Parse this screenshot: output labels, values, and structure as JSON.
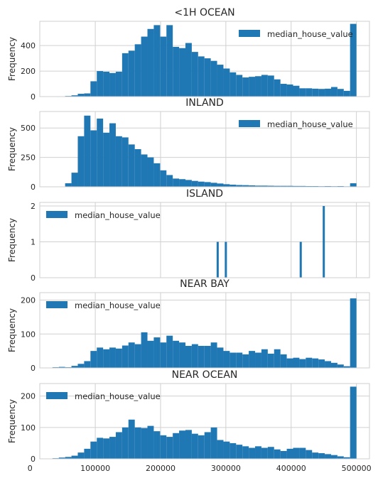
{
  "chart_data": {
    "type": "bar",
    "series_label": "median_house_value",
    "bar_color": "#1f77b4",
    "grid": true,
    "x_range": [
      15000,
      520000
    ],
    "x_ticks": [
      0,
      100000,
      200000,
      300000,
      400000,
      500000
    ],
    "x_tick_labels": [
      "0",
      "100000",
      "200000",
      "300000",
      "400000",
      "500000"
    ],
    "bins": {
      "start": 15000,
      "width": 9700,
      "count": 50
    },
    "panels": [
      {
        "title": "<1H OCEAN",
        "ylabel": "Frequency",
        "ylim": [
          0,
          590
        ],
        "yticks": [
          0,
          200,
          400
        ],
        "legend_position": "upper right",
        "values": [
          0,
          0,
          0,
          2,
          5,
          10,
          22,
          25,
          120,
          200,
          195,
          185,
          195,
          340,
          360,
          410,
          470,
          530,
          560,
          470,
          560,
          390,
          380,
          420,
          350,
          315,
          300,
          280,
          250,
          220,
          190,
          170,
          150,
          155,
          160,
          170,
          165,
          135,
          100,
          95,
          85,
          65,
          65,
          62,
          60,
          62,
          75,
          60,
          45,
          570
        ]
      },
      {
        "title": "INLAND",
        "ylabel": "Frequency",
        "ylim": [
          0,
          640
        ],
        "yticks": [
          0,
          250,
          500
        ],
        "legend_position": "upper right",
        "values": [
          0,
          0,
          0,
          0,
          30,
          120,
          430,
          605,
          480,
          580,
          460,
          540,
          430,
          420,
          360,
          320,
          275,
          250,
          200,
          140,
          100,
          70,
          65,
          58,
          50,
          44,
          40,
          34,
          28,
          22,
          18,
          15,
          14,
          12,
          10,
          10,
          9,
          8,
          8,
          8,
          7,
          7,
          6,
          6,
          5,
          6,
          5,
          6,
          4,
          30
        ]
      },
      {
        "title": "ISLAND",
        "ylabel": "Frequency",
        "ylim": [
          0,
          2.1
        ],
        "yticks": [
          0,
          1,
          2
        ],
        "legend_position": "upper left",
        "values": [
          0,
          0,
          0,
          0,
          0,
          0,
          0,
          0,
          0,
          0,
          0,
          0,
          0,
          0,
          0,
          0,
          0,
          0,
          0,
          0,
          0,
          0,
          0,
          0,
          0,
          0,
          0,
          0,
          0,
          0,
          0,
          0,
          0,
          0,
          0,
          0,
          0,
          0,
          0,
          0,
          0,
          0,
          0,
          0,
          0,
          0,
          0,
          0,
          0,
          0
        ],
        "points": [
          {
            "x": 287500,
            "count": 1
          },
          {
            "x": 300000,
            "count": 1
          },
          {
            "x": 414700,
            "count": 1
          },
          {
            "x": 450000,
            "count": 2
          }
        ]
      },
      {
        "title": "NEAR BAY",
        "ylabel": "Frequency",
        "ylim": [
          0,
          222
        ],
        "yticks": [
          0,
          100,
          200
        ],
        "legend_position": "upper left",
        "values": [
          0,
          0,
          2,
          3,
          2,
          6,
          12,
          20,
          50,
          60,
          55,
          60,
          57,
          66,
          75,
          70,
          105,
          80,
          90,
          75,
          95,
          80,
          75,
          65,
          70,
          65,
          65,
          75,
          60,
          50,
          45,
          45,
          40,
          50,
          45,
          55,
          42,
          55,
          40,
          28,
          30,
          26,
          30,
          28,
          25,
          20,
          15,
          10,
          5,
          205
        ]
      },
      {
        "title": "NEAR OCEAN",
        "ylabel": "Frequency",
        "ylim": [
          0,
          240
        ],
        "yticks": [
          0,
          100,
          200
        ],
        "legend_position": "upper left",
        "values": [
          0,
          0,
          2,
          4,
          6,
          10,
          20,
          32,
          55,
          67,
          65,
          70,
          85,
          100,
          125,
          100,
          98,
          105,
          88,
          75,
          70,
          82,
          90,
          92,
          80,
          75,
          85,
          100,
          60,
          55,
          50,
          45,
          40,
          35,
          40,
          35,
          38,
          30,
          25,
          32,
          35,
          35,
          28,
          20,
          18,
          15,
          12,
          8,
          5,
          230
        ]
      }
    ]
  }
}
